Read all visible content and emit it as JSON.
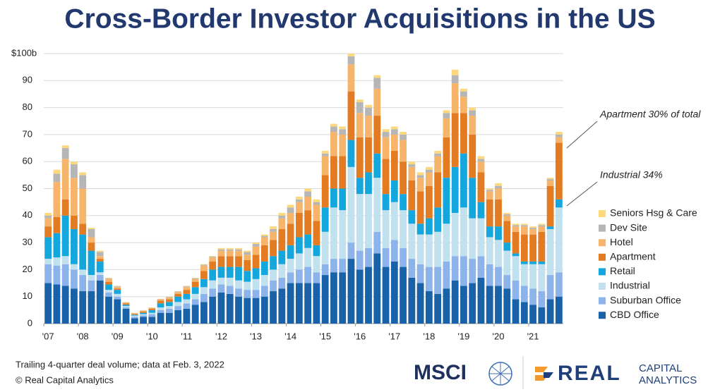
{
  "chart_data": {
    "type": "stacked_bar",
    "title": "Cross-Border Investor Acquisitions in the US",
    "categories": [
      "'07",
      null,
      null,
      null,
      "'08",
      null,
      null,
      null,
      "'09",
      null,
      null,
      null,
      "'10",
      null,
      null,
      null,
      "'11",
      null,
      null,
      null,
      "'12",
      null,
      null,
      null,
      "'13",
      null,
      null,
      null,
      "'14",
      null,
      null,
      null,
      "'15",
      null,
      null,
      null,
      "'16",
      null,
      null,
      null,
      "'17",
      null,
      null,
      null,
      "'18",
      null,
      null,
      null,
      "'19",
      null,
      null,
      null,
      "'20",
      null,
      null,
      null,
      "'21",
      null,
      null,
      null
    ],
    "ylim": [
      0,
      100
    ],
    "yticks": [
      0,
      10,
      20,
      30,
      40,
      50,
      60,
      70,
      80,
      90,
      {
        "value": 100,
        "label": "$100b"
      }
    ],
    "grid": true,
    "legend": "right",
    "series": [
      {
        "name": "CBD Office",
        "color": "#1a62a8",
        "values": [
          15,
          14.5,
          14,
          13,
          12,
          12,
          16,
          10,
          9,
          5.5,
          2,
          2.5,
          2.5,
          4,
          4,
          5,
          5.5,
          7,
          8,
          10,
          11.5,
          11,
          10,
          9.5,
          9.5,
          10,
          12,
          13,
          15,
          15,
          15,
          15,
          18,
          19,
          19,
          24,
          20,
          21,
          26,
          21,
          23,
          21,
          17,
          15,
          12,
          11,
          13,
          16,
          14,
          15,
          17,
          14,
          14,
          13,
          9,
          8,
          7,
          6,
          9,
          10
        ]
      },
      {
        "name": "Suburban Office",
        "color": "#8db4ea",
        "values": [
          7,
          7,
          8,
          7,
          6,
          4,
          2,
          1.5,
          1,
          0.5,
          0.5,
          0.5,
          1,
          1,
          1.5,
          1.5,
          2,
          2,
          3,
          3,
          3,
          3,
          3,
          3,
          3,
          4,
          4,
          4,
          4,
          5,
          6,
          4,
          4,
          5,
          5,
          6,
          7,
          7,
          8,
          7,
          8,
          7,
          7,
          7,
          9,
          10,
          10,
          9,
          11,
          9,
          8,
          8,
          7,
          5,
          7,
          6,
          6,
          6,
          9,
          9
        ]
      },
      {
        "name": "Industrial",
        "color": "#c2e1ee",
        "values": [
          2,
          3,
          3,
          2,
          2,
          2,
          1,
          1,
          1,
          0.5,
          0.5,
          0.5,
          0.5,
          1,
          1,
          1.5,
          1.5,
          2,
          2.5,
          3,
          2.5,
          3,
          3,
          3,
          4,
          4,
          4,
          5,
          5,
          6,
          7,
          6,
          12,
          19,
          18,
          28,
          21,
          20,
          20,
          14,
          14,
          14,
          13,
          11,
          12,
          13,
          14,
          16,
          18,
          15,
          14,
          10,
          10,
          9,
          9,
          8,
          9,
          10,
          17,
          24
        ]
      },
      {
        "name": "Retail",
        "color": "#14a7de",
        "values": [
          8,
          9,
          15,
          13,
          13,
          9,
          4,
          2,
          1.5,
          0.5,
          0.3,
          0.5,
          1,
          1.5,
          1.5,
          2,
          2,
          2.5,
          3,
          4,
          4,
          4,
          5,
          4,
          4,
          5,
          5,
          5,
          5,
          6,
          5,
          4,
          9,
          7,
          8,
          10,
          6,
          8,
          9,
          6,
          8,
          6,
          5,
          4,
          6,
          9,
          17,
          17,
          20,
          15,
          6,
          4,
          5,
          3,
          1,
          1,
          1,
          1,
          1,
          3
        ]
      },
      {
        "name": "Apartment",
        "color": "#e27b22",
        "values": [
          4,
          6,
          6,
          5,
          4,
          3,
          1,
          1,
          0.5,
          0.5,
          0.3,
          0.5,
          0.5,
          1,
          1,
          1,
          1.5,
          2,
          3,
          3,
          4,
          4,
          4,
          4,
          5,
          6,
          6,
          8,
          8,
          9,
          9,
          9,
          12,
          12,
          12,
          18,
          15,
          13,
          14,
          13,
          11,
          12,
          11,
          12,
          12,
          13,
          15,
          20,
          15,
          16,
          11,
          10,
          10,
          8,
          8,
          10,
          10,
          11,
          15,
          21
        ]
      },
      {
        "name": "Hotel",
        "color": "#f7b46b",
        "values": [
          3,
          13,
          15,
          14,
          13,
          2,
          1,
          1,
          0.5,
          0.3,
          0.2,
          0.3,
          0.3,
          0.5,
          0.7,
          0.7,
          1,
          1,
          2,
          1.5,
          2,
          2,
          2,
          2,
          3,
          3,
          3,
          4,
          4,
          4,
          5,
          6,
          7,
          9,
          8,
          10,
          9,
          8,
          10,
          8,
          6,
          8,
          5,
          5,
          5,
          6,
          7,
          11,
          6,
          7,
          4,
          3,
          4,
          2,
          2,
          3,
          2,
          2,
          2,
          2
        ]
      },
      {
        "name": "Dev Site",
        "color": "#b6b6b6",
        "values": [
          1,
          3,
          4,
          5,
          5,
          3,
          1.5,
          0.3,
          0.3,
          0.1,
          0.1,
          0.1,
          0.1,
          0.1,
          0.2,
          0.2,
          0.3,
          0.3,
          0.3,
          0.3,
          0.5,
          0.5,
          0.5,
          1,
          1,
          0.5,
          1,
          1,
          2,
          1,
          2,
          1,
          1,
          2,
          2,
          3,
          4,
          3,
          4,
          2,
          2,
          2,
          1,
          1,
          1,
          1,
          2,
          3,
          2,
          2,
          1,
          0.5,
          1,
          0.5,
          0.5,
          0.5,
          0.5,
          0.5,
          0.5,
          1
        ]
      },
      {
        "name": "Seniors Hsg & Care",
        "color": "#fbd97c",
        "values": [
          1,
          1.5,
          1,
          1,
          1,
          0.5,
          0.5,
          0.2,
          0.2,
          0.1,
          0.1,
          0.1,
          0.1,
          0.1,
          0.1,
          0.1,
          0.2,
          0.2,
          0.2,
          0.2,
          0.5,
          0.5,
          0.5,
          0.5,
          0.5,
          0.5,
          1,
          1,
          1,
          1,
          1,
          1,
          1,
          1,
          1,
          1,
          1,
          1,
          1,
          1,
          1,
          1,
          1,
          1,
          1,
          1,
          1,
          2,
          1,
          1,
          1,
          0.5,
          1,
          0.5,
          0.5,
          0.5,
          0.5,
          0.5,
          0.5,
          1
        ]
      }
    ],
    "annotations": [
      "Apartment 30% of total",
      "Industrial 34%"
    ],
    "note": "Trailing 4-quarter deal volume; data at Feb. 3, 2022",
    "source": "© Real Capital Analytics"
  },
  "logos": {
    "msci": "MSCI",
    "rca_main": "REAL",
    "rca_top": "CAPITAL",
    "rca_bottom": "ANALYTICS"
  }
}
